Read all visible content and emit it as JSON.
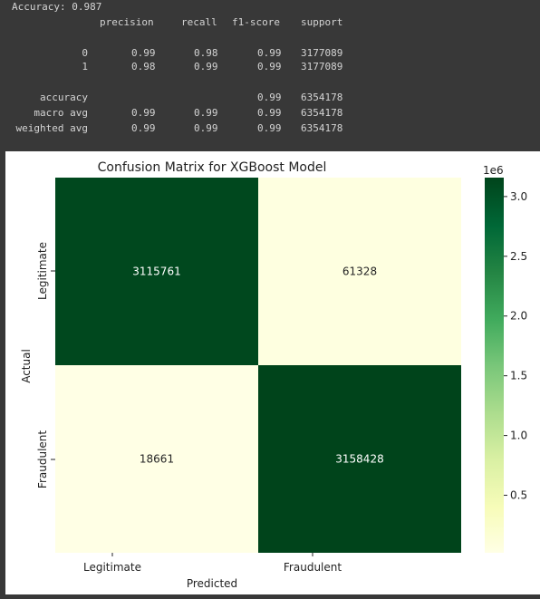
{
  "report": {
    "accuracy_line": "Accuracy: 0.987",
    "headers": [
      "precision",
      "recall",
      "f1-score",
      "support"
    ],
    "rows": [
      {
        "label": "0",
        "precision": "0.99",
        "recall": "0.98",
        "f1": "0.99",
        "support": "3177089"
      },
      {
        "label": "1",
        "precision": "0.98",
        "recall": "0.99",
        "f1": "0.99",
        "support": "3177089"
      },
      {
        "label": "accuracy",
        "precision": "",
        "recall": "",
        "f1": "0.99",
        "support": "6354178"
      },
      {
        "label": "macro avg",
        "precision": "0.99",
        "recall": "0.99",
        "f1": "0.99",
        "support": "6354178"
      },
      {
        "label": "weighted avg",
        "precision": "0.99",
        "recall": "0.99",
        "f1": "0.99",
        "support": "6354178"
      }
    ]
  },
  "chart_data": {
    "type": "heatmap",
    "title": "Confusion Matrix for XGBoost Model",
    "xlabel": "Predicted",
    "ylabel": "Actual",
    "x_categories": [
      "Legitimate",
      "Fraudulent"
    ],
    "y_categories": [
      "Legitimate",
      "Fraudulent"
    ],
    "values": [
      [
        3115761,
        61328
      ],
      [
        18661,
        3158428
      ]
    ],
    "colormap": "YlGn",
    "colorbar": {
      "multiplier": "1e6",
      "ticks": [
        0.5,
        1.0,
        1.5,
        2.0,
        2.5,
        3.0
      ],
      "tick_labels": [
        "0.5",
        "1.0",
        "1.5",
        "2.0",
        "2.5",
        "3.0"
      ],
      "range": [
        18661,
        3158428
      ]
    },
    "colors": {
      "dark": "#00441b",
      "light": "#ffffe5"
    }
  }
}
